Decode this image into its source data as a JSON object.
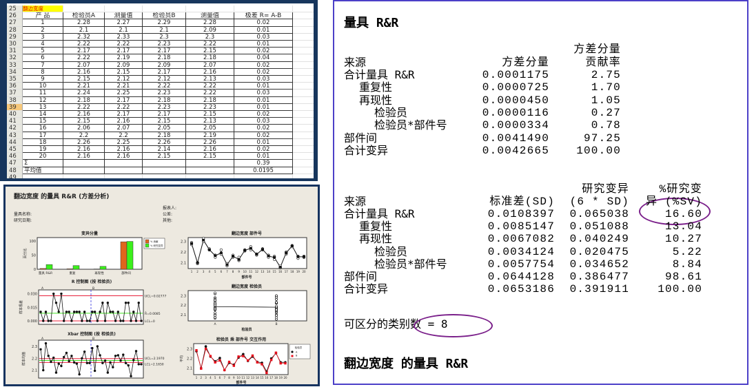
{
  "spreadsheet": {
    "title_cell": "翻边宽度",
    "first_row_number": 25,
    "selected_row_number": 39,
    "headers": [
      "产 品",
      "检验员A",
      "测量值",
      "检验员B",
      "测量值",
      "极差 R= A-B"
    ],
    "rows": [
      [
        "1",
        "2.28",
        "2.27",
        "2.29",
        "2.28",
        "0.02"
      ],
      [
        "2",
        "2.1",
        "2.1",
        "2.1",
        "2.09",
        "0.01"
      ],
      [
        "3",
        "2.32",
        "2.33",
        "2.3",
        "2.3",
        "0.03"
      ],
      [
        "4",
        "2.22",
        "2.22",
        "2.23",
        "2.22",
        "0.01"
      ],
      [
        "5",
        "2.17",
        "2.17",
        "2.17",
        "2.15",
        "0.02"
      ],
      [
        "6",
        "2.22",
        "2.19",
        "2.18",
        "2.18",
        "0.04"
      ],
      [
        "7",
        "2.07",
        "2.09",
        "2.09",
        "2.07",
        "0.02"
      ],
      [
        "8",
        "2.16",
        "2.15",
        "2.17",
        "2.16",
        "0.02"
      ],
      [
        "9",
        "2.15",
        "2.12",
        "2.12",
        "2.13",
        "0.03"
      ],
      [
        "10",
        "2.21",
        "2.21",
        "2.22",
        "2.22",
        "0.01"
      ],
      [
        "11",
        "2.24",
        "2.25",
        "2.23",
        "2.22",
        "0.03"
      ],
      [
        "12",
        "2.18",
        "2.17",
        "2.18",
        "2.18",
        "0.01"
      ],
      [
        "13",
        "2.22",
        "2.22",
        "2.23",
        "2.23",
        "0.01"
      ],
      [
        "14",
        "2.16",
        "2.17",
        "2.17",
        "2.15",
        "0.02"
      ],
      [
        "15",
        "2.15",
        "2.16",
        "2.15",
        "2.13",
        "0.03"
      ],
      [
        "16",
        "2.06",
        "2.07",
        "2.05",
        "2.05",
        "0.02"
      ],
      [
        "17",
        "2.2",
        "2.2",
        "2.18",
        "2.19",
        "0.02"
      ],
      [
        "18",
        "2.26",
        "2.25",
        "2.26",
        "2.26",
        "0.01"
      ],
      [
        "19",
        "2.16",
        "2.16",
        "2.14",
        "2.16",
        "0.02"
      ],
      [
        "20",
        "2.16",
        "2.16",
        "2.15",
        "2.15",
        "0.01"
      ]
    ],
    "sum_label": "Σ",
    "sum_value": "0.39",
    "avg_label": "平均值",
    "avg_value": "0.0195"
  },
  "minitab": {
    "title": "翻边宽度 的量具 R&R (方差分析)",
    "fields_left": [
      "量具名称:",
      "研究日期:"
    ],
    "fields_right": [
      "报表人:",
      "公差:",
      "其他:"
    ],
    "colors": {
      "contribution": "#e0661c",
      "study_var": "#3cf01c",
      "ucl": "#e8203a",
      "center": "#40e020",
      "divider": "#3030e0",
      "operator_b": "#e8101c"
    },
    "bar_chart": {
      "title": "变异分量",
      "ylabel": "百分比",
      "categories": [
        "量具 R&R",
        "重复",
        "再现性",
        "部件间"
      ],
      "yticks": [
        "0",
        "50",
        "100"
      ],
      "legend": [
        "% 贡献",
        "% 研究变异"
      ],
      "contribution": [
        2.75,
        1.7,
        1.05,
        97.25
      ],
      "study_var": [
        16.6,
        13.04,
        10.27,
        98.61
      ]
    },
    "by_part": {
      "title": "翻边宽度      部件号",
      "xlabel": "部件号",
      "yticks": [
        "2.1",
        "2.2",
        "2.3"
      ]
    },
    "r_chart": {
      "title": "R 控制图 (按 检验员)",
      "ylabel": "样本极差",
      "yticks": [
        "0.000",
        "0.015",
        "0.030"
      ],
      "ucl_label": "UCL=0.02777",
      "center_label": "R̄=0.0085",
      "lcl_label": "LCL=0",
      "ucl": 0.02777,
      "center": 0.0085,
      "lcl": 0,
      "operators": [
        "A",
        "B"
      ]
    },
    "xbar_chart": {
      "title": "Xbar 控制图 (按 检验员)",
      "ylabel": "样本均值",
      "yticks": [
        "2.1",
        "2.2",
        "2.3"
      ],
      "ucl_label": "UCL=2.1970",
      "lcl_label": "LCL=2.1650",
      "ucl": 2.197,
      "center": 2.181,
      "lcl": 2.165,
      "operators": [
        "A",
        "B"
      ]
    },
    "by_operator": {
      "title": "翻边宽度      检验员",
      "xlabel": "检验员",
      "categories": [
        "A",
        "B"
      ],
      "yticks": [
        "2.1",
        "2.2",
        "2.3"
      ]
    },
    "interaction": {
      "title": "检验员 乘 部件号 交互作用",
      "xlabel": "部件号",
      "ylabel": "平均",
      "legend_title": "检验员",
      "legend": [
        "A",
        "B"
      ],
      "yticks": [
        "2.1",
        "2.2",
        "2.3"
      ]
    }
  },
  "output": {
    "title": "量具 R&R",
    "table1": {
      "headers": [
        "来源",
        "方差分量",
        "方差分量",
        "贡献率"
      ],
      "rows": [
        [
          "合计量具 R&R",
          "0.0001175",
          "2.75"
        ],
        [
          "  重复性",
          "0.0000725",
          "1.70"
        ],
        [
          "  再现性",
          "0.0000450",
          "1.05"
        ],
        [
          "    检验员",
          "0.0000116",
          "0.27"
        ],
        [
          "    检验员*部件号",
          "0.0000334",
          "0.78"
        ],
        [
          "部件间",
          "0.0041490",
          "97.25"
        ],
        [
          "合计变异",
          "0.0042665",
          "100.00"
        ]
      ]
    },
    "table2": {
      "headers": [
        "来源",
        "标准差(SD)",
        "研究变异",
        "(6 * SD)",
        "%研究变",
        "异 (%SV)"
      ],
      "rows": [
        [
          "合计量具 R&R",
          "0.0108397",
          "0.065038",
          "16.60"
        ],
        [
          "  重复性",
          "0.0085147",
          "0.051088",
          "13.04"
        ],
        [
          "  再现性",
          "0.0067082",
          "0.040249",
          "10.27"
        ],
        [
          "    检验员",
          "0.0034124",
          "0.020475",
          "5.22"
        ],
        [
          "    检验员*部件号",
          "0.0057754",
          "0.034652",
          "8.84"
        ],
        [
          "部件间",
          "0.0644128",
          "0.386477",
          "98.61"
        ],
        [
          "合计变异",
          "0.0653186",
          "0.391911",
          "100.00"
        ]
      ]
    },
    "distinct_categories": "可区分的类别数 = 8",
    "footer_title": "翻边宽度 的量具 R&R",
    "highlight_color": "#7a1f8a"
  }
}
